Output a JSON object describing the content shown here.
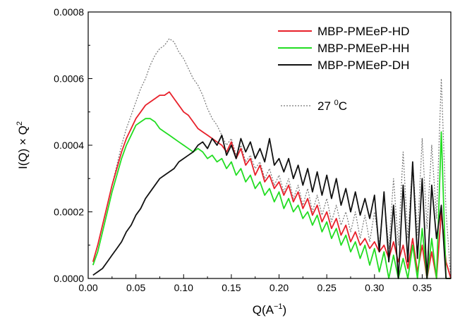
{
  "chart_data": {
    "type": "line",
    "title": "",
    "xlabel_main": "Q(A",
    "xlabel_sup": "−1",
    "xlabel_close": ")",
    "ylabel_main": "I(Q) × Q",
    "ylabel_sup": "2",
    "xlim": [
      0.0,
      0.38
    ],
    "ylim": [
      0.0,
      0.0008
    ],
    "xticks": [
      0.0,
      0.05,
      0.1,
      0.15,
      0.2,
      0.25,
      0.3,
      0.35
    ],
    "xtick_labels": [
      "0.00",
      "0.05",
      "0.10",
      "0.15",
      "0.20",
      "0.25",
      "0.30",
      "0.35"
    ],
    "yticks": [
      0.0,
      0.0002,
      0.0004,
      0.0006,
      0.0008
    ],
    "ytick_labels": [
      "0.0000",
      "0.0002",
      "0.0004",
      "0.0006",
      "0.0008"
    ],
    "legend_position": "top-right",
    "annotation": {
      "label_main": "27 ",
      "label_sup": "0",
      "label_end": "C",
      "style": "dotted",
      "color": "#777777"
    },
    "series": [
      {
        "name": "MBP-PMEeP-HD",
        "color": "#e8202a",
        "style": "solid",
        "x": [
          0.005,
          0.01,
          0.015,
          0.02,
          0.025,
          0.03,
          0.035,
          0.04,
          0.045,
          0.05,
          0.055,
          0.06,
          0.065,
          0.07,
          0.075,
          0.08,
          0.085,
          0.09,
          0.095,
          0.1,
          0.105,
          0.11,
          0.115,
          0.12,
          0.125,
          0.13,
          0.135,
          0.14,
          0.145,
          0.15,
          0.155,
          0.16,
          0.165,
          0.17,
          0.175,
          0.18,
          0.185,
          0.19,
          0.195,
          0.2,
          0.205,
          0.21,
          0.215,
          0.22,
          0.225,
          0.23,
          0.235,
          0.24,
          0.245,
          0.25,
          0.255,
          0.26,
          0.265,
          0.27,
          0.275,
          0.28,
          0.285,
          0.29,
          0.295,
          0.3,
          0.305,
          0.31,
          0.315,
          0.32,
          0.325,
          0.33,
          0.335,
          0.34,
          0.345,
          0.35,
          0.355,
          0.36,
          0.365,
          0.37,
          0.375,
          0.38
        ],
        "y": [
          5e-05,
          0.0001,
          0.00016,
          0.00022,
          0.00028,
          0.00033,
          0.00038,
          0.00042,
          0.00045,
          0.00048,
          0.0005,
          0.00052,
          0.00053,
          0.00054,
          0.00055,
          0.00055,
          0.00056,
          0.00054,
          0.00052,
          0.0005,
          0.00049,
          0.00047,
          0.00045,
          0.00044,
          0.00043,
          0.00042,
          0.00041,
          0.0004,
          0.00038,
          0.00041,
          0.00036,
          0.00039,
          0.00034,
          0.00036,
          0.00031,
          0.00034,
          0.00029,
          0.00031,
          0.00027,
          0.00029,
          0.00025,
          0.00028,
          0.00023,
          0.00026,
          0.00021,
          0.00024,
          0.00019,
          0.00022,
          0.00017,
          0.0002,
          0.00015,
          0.00018,
          0.00013,
          0.00016,
          0.00011,
          0.00014,
          0.0001,
          0.00012,
          9e-05,
          0.00011,
          8e-05,
          0.0001,
          6e-05,
          0.00011,
          5e-05,
          0.0001,
          3e-05,
          0.00012,
          2e-05,
          0.0001,
          0.0,
          8e-05,
          0.0,
          0.0002,
          5e-05,
          0.0
        ]
      },
      {
        "name": "MBP-PMEeP-HH",
        "color": "#22dd22",
        "style": "solid",
        "x": [
          0.005,
          0.01,
          0.015,
          0.02,
          0.025,
          0.03,
          0.035,
          0.04,
          0.045,
          0.05,
          0.055,
          0.06,
          0.065,
          0.07,
          0.075,
          0.08,
          0.085,
          0.09,
          0.095,
          0.1,
          0.105,
          0.11,
          0.115,
          0.12,
          0.125,
          0.13,
          0.135,
          0.14,
          0.145,
          0.15,
          0.155,
          0.16,
          0.165,
          0.17,
          0.175,
          0.18,
          0.185,
          0.19,
          0.195,
          0.2,
          0.205,
          0.21,
          0.215,
          0.22,
          0.225,
          0.23,
          0.235,
          0.24,
          0.245,
          0.25,
          0.255,
          0.26,
          0.265,
          0.27,
          0.275,
          0.28,
          0.285,
          0.29,
          0.295,
          0.3,
          0.305,
          0.31,
          0.315,
          0.32,
          0.325,
          0.33,
          0.335,
          0.34,
          0.345,
          0.35,
          0.355,
          0.36,
          0.365,
          0.37,
          0.375,
          0.38
        ],
        "y": [
          4e-05,
          8e-05,
          0.00014,
          0.0002,
          0.00026,
          0.00031,
          0.00036,
          0.0004,
          0.00043,
          0.00046,
          0.00047,
          0.00048,
          0.00048,
          0.00047,
          0.00045,
          0.00044,
          0.00043,
          0.00042,
          0.00041,
          0.0004,
          0.00039,
          0.00038,
          0.00039,
          0.00038,
          0.00036,
          0.00037,
          0.00035,
          0.00036,
          0.00033,
          0.00035,
          0.00031,
          0.00033,
          0.00029,
          0.00031,
          0.00027,
          0.00029,
          0.00025,
          0.00027,
          0.00023,
          0.00026,
          0.00021,
          0.00024,
          0.0002,
          0.00022,
          0.00018,
          0.0002,
          0.00016,
          0.00019,
          0.00014,
          0.00017,
          0.00012,
          0.00015,
          0.0001,
          0.00013,
          8e-05,
          0.00011,
          6e-05,
          0.0001,
          4e-05,
          9e-05,
          2e-05,
          8e-05,
          0.0,
          7e-05,
          0.0,
          6e-05,
          0.0,
          0.0001,
          0.0,
          0.00015,
          0.0,
          0.00012,
          0.0,
          0.00044,
          0.0,
          0.0
        ]
      },
      {
        "name": "MBP-PMEeP-DH",
        "color": "#111111",
        "style": "solid",
        "x": [
          0.005,
          0.01,
          0.015,
          0.02,
          0.025,
          0.03,
          0.035,
          0.04,
          0.045,
          0.05,
          0.055,
          0.06,
          0.065,
          0.07,
          0.075,
          0.08,
          0.085,
          0.09,
          0.095,
          0.1,
          0.105,
          0.11,
          0.115,
          0.12,
          0.125,
          0.13,
          0.135,
          0.14,
          0.145,
          0.15,
          0.155,
          0.16,
          0.165,
          0.17,
          0.175,
          0.18,
          0.185,
          0.19,
          0.195,
          0.2,
          0.205,
          0.21,
          0.215,
          0.22,
          0.225,
          0.23,
          0.235,
          0.24,
          0.245,
          0.25,
          0.255,
          0.26,
          0.265,
          0.27,
          0.275,
          0.28,
          0.285,
          0.29,
          0.295,
          0.3,
          0.305,
          0.31,
          0.315,
          0.32,
          0.325,
          0.33,
          0.335,
          0.34,
          0.345,
          0.35,
          0.355,
          0.36,
          0.365,
          0.37,
          0.375,
          0.38
        ],
        "y": [
          1e-05,
          2e-05,
          3e-05,
          5e-05,
          7e-05,
          9e-05,
          0.00011,
          0.00014,
          0.00016,
          0.00019,
          0.00021,
          0.00024,
          0.00026,
          0.00028,
          0.0003,
          0.00031,
          0.00032,
          0.00033,
          0.00035,
          0.00036,
          0.00037,
          0.00038,
          0.0004,
          0.00041,
          0.00039,
          0.00042,
          0.0004,
          0.00043,
          0.00037,
          0.0004,
          0.00036,
          0.00042,
          0.00038,
          0.00041,
          0.00036,
          0.00039,
          0.00035,
          0.00042,
          0.00034,
          0.00036,
          0.00032,
          0.00036,
          0.0003,
          0.00034,
          0.00028,
          0.00033,
          0.00026,
          0.00032,
          0.00025,
          0.00031,
          0.00024,
          0.0003,
          0.00022,
          0.00027,
          0.0002,
          0.00026,
          0.00019,
          0.00024,
          0.00018,
          0.00025,
          8e-05,
          0.00026,
          5e-05,
          0.00022,
          0.0,
          0.00028,
          5e-05,
          0.00035,
          6e-05,
          0.0003,
          0.0,
          0.00028,
          0.00012,
          0.00022,
          0.0,
          0.0
        ]
      },
      {
        "name": "27 °C",
        "color": "#777777",
        "style": "dotted",
        "x": [
          0.005,
          0.01,
          0.015,
          0.02,
          0.025,
          0.03,
          0.035,
          0.04,
          0.045,
          0.05,
          0.055,
          0.06,
          0.065,
          0.07,
          0.075,
          0.08,
          0.085,
          0.09,
          0.095,
          0.1,
          0.105,
          0.11,
          0.115,
          0.12,
          0.125,
          0.13,
          0.135,
          0.14,
          0.145,
          0.15,
          0.155,
          0.16,
          0.165,
          0.17,
          0.175,
          0.18,
          0.185,
          0.19,
          0.195,
          0.2,
          0.205,
          0.21,
          0.215,
          0.22,
          0.225,
          0.23,
          0.235,
          0.24,
          0.245,
          0.25,
          0.255,
          0.26,
          0.265,
          0.27,
          0.275,
          0.28,
          0.285,
          0.29,
          0.295,
          0.3,
          0.305,
          0.31,
          0.315,
          0.32,
          0.325,
          0.33,
          0.335,
          0.34,
          0.345,
          0.35,
          0.355,
          0.36,
          0.365,
          0.37,
          0.375,
          0.38
        ],
        "y": [
          5e-05,
          0.0001,
          0.00016,
          0.00022,
          0.00028,
          0.00034,
          0.0004,
          0.00045,
          0.00049,
          0.00053,
          0.00057,
          0.0006,
          0.00064,
          0.00067,
          0.00069,
          0.0007,
          0.00072,
          0.00071,
          0.00068,
          0.00066,
          0.00063,
          0.0006,
          0.00058,
          0.00055,
          0.00051,
          0.00048,
          0.00046,
          0.00043,
          0.0004,
          0.00042,
          0.00037,
          0.0004,
          0.00035,
          0.00037,
          0.00033,
          0.00035,
          0.0003,
          0.00033,
          0.00028,
          0.00031,
          0.00026,
          0.0003,
          0.00024,
          0.00028,
          0.00022,
          0.00027,
          0.0002,
          0.00025,
          0.00019,
          0.00024,
          0.00017,
          0.00022,
          0.00016,
          0.0002,
          0.00014,
          0.0002,
          0.00012,
          0.00019,
          0.00011,
          0.0002,
          0.0001,
          0.00025,
          9e-05,
          0.0003,
          0.0001,
          0.00038,
          0.00012,
          0.00035,
          0.00013,
          0.00042,
          0.00015,
          0.0004,
          0.00018,
          0.0006,
          0.0002,
          0.0
        ]
      }
    ]
  }
}
